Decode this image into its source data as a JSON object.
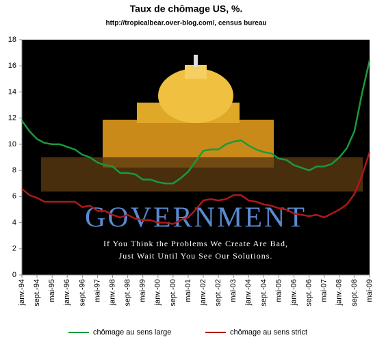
{
  "chart_data": {
    "type": "line",
    "title": "Taux de chômage US, %.",
    "subtitle": "http://tropicalbear.over-blog.com/, census bureau",
    "annotations": [
      "GOVERNMENT",
      "If You Think the Problems We Create Are Bad,",
      "Just Wait Until You See Our Solutions."
    ],
    "categories": [
      "janv.-94",
      null,
      "sept.-94",
      null,
      "mai-95",
      null,
      "janv.-96",
      null,
      "sept.-96",
      null,
      "mai-97",
      null,
      "janv.-98",
      null,
      "sept.-98",
      null,
      "mai-99",
      null,
      "janv.-00",
      null,
      "sept.-00",
      null,
      "mai-01",
      null,
      "janv.-02",
      null,
      "sept.-02",
      null,
      "mai-03",
      null,
      "janv.-04",
      null,
      "sept.-04",
      null,
      "mai-05",
      null,
      "janv.-06",
      null,
      "sept.-06",
      null,
      "mai-07",
      null,
      "janv.-08",
      null,
      "sept.-08",
      null,
      "mai-09"
    ],
    "series": [
      {
        "name": "chômage au sens large",
        "color": "#1a9a3a",
        "values": [
          11.8,
          11.0,
          10.4,
          10.1,
          10.0,
          10.0,
          9.8,
          9.6,
          9.2,
          9.0,
          8.6,
          8.4,
          8.3,
          7.8,
          7.8,
          7.7,
          7.3,
          7.3,
          7.1,
          7.0,
          7.0,
          7.4,
          7.9,
          8.7,
          9.5,
          9.6,
          9.6,
          10.0,
          10.2,
          10.3,
          9.9,
          9.6,
          9.4,
          9.3,
          8.9,
          8.8,
          8.4,
          8.2,
          8.0,
          8.3,
          8.3,
          8.5,
          9.0,
          9.7,
          11.0,
          13.9,
          16.4
        ]
      },
      {
        "name": "chômage au sens strict",
        "color": "#b01818",
        "values": [
          6.6,
          6.1,
          5.9,
          5.6,
          5.6,
          5.6,
          5.6,
          5.6,
          5.2,
          5.3,
          4.9,
          4.9,
          4.6,
          4.4,
          4.6,
          4.3,
          4.2,
          4.2,
          4.0,
          4.0,
          3.9,
          4.2,
          4.4,
          5.0,
          5.7,
          5.8,
          5.7,
          5.8,
          6.1,
          6.1,
          5.7,
          5.6,
          5.4,
          5.3,
          5.1,
          5.0,
          4.7,
          4.6,
          4.5,
          4.6,
          4.4,
          4.7,
          5.0,
          5.4,
          6.2,
          7.6,
          9.4
        ]
      }
    ],
    "ylim": [
      0,
      18
    ],
    "yticks": [
      0,
      2,
      4,
      6,
      8,
      10,
      12,
      14,
      16,
      18
    ]
  }
}
